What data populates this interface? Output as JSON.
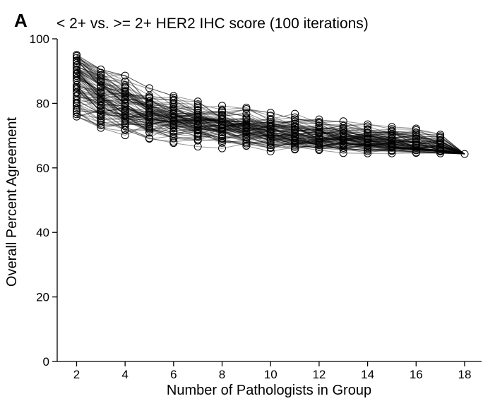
{
  "panel_label": "A",
  "chart_data": {
    "type": "line",
    "title": "< 2+ vs. >= 2+ HER2 IHC score (100 iterations)",
    "xlabel": "Number of Pathologists in Group",
    "ylabel": "Overall Percent Agreement",
    "xlim": [
      1.2,
      18.7
    ],
    "ylim": [
      0,
      100
    ],
    "x_ticks": [
      2,
      4,
      6,
      8,
      10,
      12,
      14,
      16,
      18
    ],
    "y_ticks": [
      0,
      20,
      40,
      60,
      80,
      100
    ],
    "x": [
      2,
      3,
      4,
      5,
      6,
      7,
      8,
      9,
      10,
      11,
      12,
      13,
      14,
      15,
      16,
      17,
      18
    ],
    "iterations": 100,
    "mean_line": [
      88.0,
      82.4,
      78.9,
      76.6,
      74.9,
      73.6,
      72.5,
      71.5,
      70.6,
      69.9,
      69.2,
      68.5,
      67.8,
      67.1,
      66.3,
      65.4,
      64.3
    ],
    "observed_range": {
      "min": [
        75.9,
        72.4,
        70.1,
        68.4,
        67.7,
        66.6,
        65.5,
        65.5,
        65.0,
        64.8,
        64.8,
        64.5,
        64.5,
        64.5,
        64.5,
        64.5,
        64.3
      ],
      "max": [
        95.1,
        90.5,
        88.6,
        84.7,
        82.3,
        80.6,
        79.3,
        79.3,
        77.1,
        77.1,
        75.7,
        74.5,
        73.5,
        72.7,
        72.2,
        70.5,
        64.3
      ]
    },
    "grid": false,
    "legend": "none",
    "color": "#000000"
  }
}
